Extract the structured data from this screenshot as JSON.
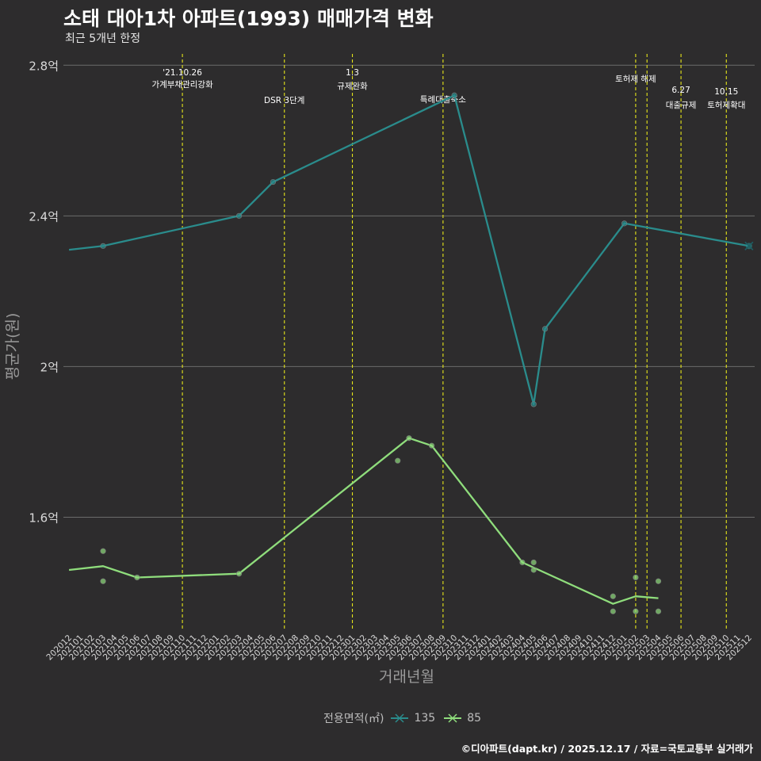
{
  "title": "소태 대아1차 아파트(1993) 매매가격 변화",
  "subtitle": "최근 5개년 한정",
  "caption": "©디아파트(dapt.kr) / 2025.12.17 / 자료=국토교통부 실거래가",
  "legend": {
    "title": "전용면적(㎡)",
    "items": [
      {
        "label": "135",
        "color": "#2a8c8c"
      },
      {
        "label": "85",
        "color": "#8fdd7c"
      }
    ]
  },
  "chart_data": {
    "type": "line",
    "title": "소태 대아1차 아파트(1993) 매매가격 변화",
    "xlabel": "거래년월",
    "ylabel": "평균가(원)",
    "ylim": [
      1.3,
      2.83
    ],
    "yticks": [
      {
        "value": 1.6,
        "label": "1.6억"
      },
      {
        "value": 2.0,
        "label": "2억"
      },
      {
        "value": 2.4,
        "label": "2.4억"
      },
      {
        "value": 2.8,
        "label": "2.8억"
      }
    ],
    "categories": [
      "202012",
      "202101",
      "202102",
      "202103",
      "202104",
      "202105",
      "202106",
      "202107",
      "202108",
      "202109",
      "202110",
      "202111",
      "202112",
      "202201",
      "202202",
      "202203",
      "202204",
      "202205",
      "202206",
      "202207",
      "202208",
      "202209",
      "202210",
      "202211",
      "202212",
      "202301",
      "202302",
      "202303",
      "202304",
      "202305",
      "202306",
      "202307",
      "202308",
      "202309",
      "202310",
      "202311",
      "202312",
      "202401",
      "202402",
      "202403",
      "202404",
      "202405",
      "202406",
      "202407",
      "202408",
      "202409",
      "202410",
      "202411",
      "202412",
      "202501",
      "202502",
      "202503",
      "202504",
      "202505",
      "202506",
      "202507",
      "202508",
      "202509",
      "202510",
      "202511",
      "202512"
    ],
    "series": [
      {
        "name": "135",
        "color": "#2a8c8c",
        "line": [
          [
            "202012",
            2.31
          ],
          [
            "202103",
            2.32
          ],
          [
            "202203",
            2.4
          ],
          [
            "202206",
            2.49
          ],
          [
            "202310",
            2.72
          ],
          [
            "202405",
            1.9
          ],
          [
            "202406",
            2.1
          ],
          [
            "202501",
            2.38
          ],
          [
            "202512",
            2.32
          ]
        ],
        "points": [
          [
            "202103",
            2.32
          ],
          [
            "202203",
            2.4
          ],
          [
            "202206",
            2.49
          ],
          [
            "202310",
            2.72
          ],
          [
            "202405",
            1.9
          ],
          [
            "202406",
            2.1
          ],
          [
            "202501",
            2.38
          ]
        ],
        "last_marker": [
          "202512",
          2.32
        ]
      },
      {
        "name": "85",
        "color": "#8fdd7c",
        "line": [
          [
            "202012",
            1.46
          ],
          [
            "202103",
            1.47
          ],
          [
            "202106",
            1.44
          ],
          [
            "202203",
            1.45
          ],
          [
            "202306",
            1.81
          ],
          [
            "202308",
            1.79
          ],
          [
            "202404",
            1.48
          ],
          [
            "202412",
            1.37
          ],
          [
            "202502",
            1.39
          ],
          [
            "202504",
            1.385
          ]
        ],
        "points": [
          [
            "202103",
            1.51
          ],
          [
            "202103",
            1.43
          ],
          [
            "202106",
            1.44
          ],
          [
            "202203",
            1.45
          ],
          [
            "202305",
            1.75
          ],
          [
            "202306",
            1.81
          ],
          [
            "202308",
            1.79
          ],
          [
            "202404",
            1.48
          ],
          [
            "202405",
            1.48
          ],
          [
            "202405",
            1.46
          ],
          [
            "202412",
            1.39
          ],
          [
            "202412",
            1.35
          ],
          [
            "202502",
            1.44
          ],
          [
            "202502",
            1.35
          ],
          [
            "202504",
            1.43
          ],
          [
            "202504",
            1.35
          ]
        ]
      }
    ],
    "events": [
      {
        "month": "202110",
        "date": "'21.10.26",
        "label": "가계부채관리강화"
      },
      {
        "month": "202207",
        "date": "",
        "label": "DSR 3단계"
      },
      {
        "month": "202301",
        "date": "1.3",
        "label": "규제완화"
      },
      {
        "month": "202309",
        "date": "",
        "label": "특례대출축소"
      },
      {
        "month": "202502",
        "date": "",
        "label": "토허제 해제"
      },
      {
        "month": "202503",
        "date": "",
        "label": ""
      },
      {
        "month": "202506",
        "date": "6.27",
        "label": "대출규제"
      },
      {
        "month": "202510",
        "date": "10.15",
        "label": "토허제확대"
      }
    ]
  }
}
